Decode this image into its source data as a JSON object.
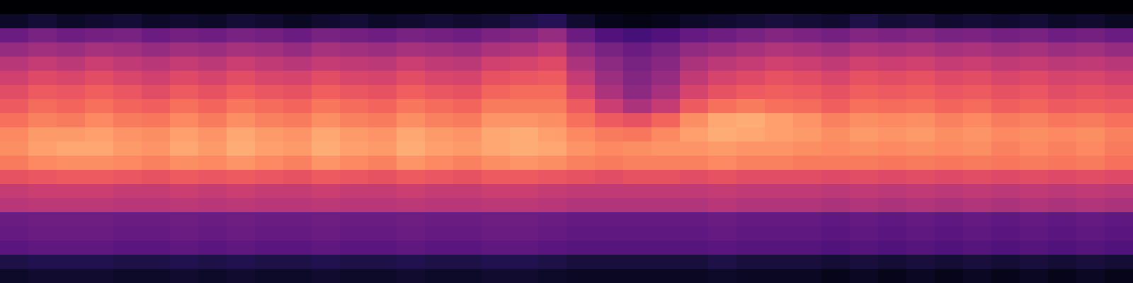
{
  "chart_data": {
    "type": "heatmap",
    "color": "magma",
    "tick_labels": false,
    "zlim": [
      -80,
      0
    ],
    "z": [
      [
        -80,
        -80,
        -80,
        -80,
        -80,
        -80,
        -80,
        -80,
        -80,
        -80,
        -80,
        -80,
        -80,
        -80,
        -80,
        -80,
        -80,
        -80,
        -80,
        -80,
        -80,
        -80,
        -80,
        -80,
        -80,
        -80,
        -80,
        -80,
        -80,
        -80,
        -80,
        -80,
        -80,
        -80,
        -80,
        -80,
        -80,
        -80,
        -80,
        -80
      ],
      [
        -74,
        -72,
        -74,
        -73,
        -72,
        -74,
        -73,
        -74,
        -72,
        -73,
        -75,
        -73,
        -72,
        -74,
        -73,
        -72,
        -73,
        -72,
        -70,
        -68,
        -73,
        -76,
        -77,
        -76,
        -74,
        -73,
        -72,
        -71,
        -72,
        -73,
        -70,
        -72,
        -71,
        -73,
        -72,
        -73,
        -72,
        -74,
        -73,
        -75
      ],
      [
        -55,
        -52,
        -54,
        -53,
        -52,
        -55,
        -53,
        -54,
        -52,
        -53,
        -55,
        -52,
        -53,
        -54,
        -52,
        -53,
        -54,
        -51,
        -50,
        -46,
        -55,
        -60,
        -62,
        -60,
        -56,
        -54,
        -52,
        -50,
        -51,
        -53,
        -50,
        -51,
        -50,
        -52,
        -51,
        -53,
        -52,
        -54,
        -53,
        -55
      ],
      [
        -46,
        -44,
        -45,
        -43,
        -44,
        -46,
        -44,
        -45,
        -43,
        -44,
        -46,
        -43,
        -44,
        -45,
        -43,
        -44,
        -45,
        -42,
        -41,
        -38,
        -47,
        -52,
        -55,
        -52,
        -47,
        -45,
        -43,
        -41,
        -42,
        -44,
        -41,
        -42,
        -41,
        -43,
        -42,
        -44,
        -43,
        -45,
        -44,
        -46
      ],
      [
        -40,
        -37,
        -39,
        -36,
        -38,
        -40,
        -37,
        -39,
        -36,
        -38,
        -40,
        -37,
        -38,
        -39,
        -36,
        -38,
        -39,
        -35,
        -34,
        -32,
        -42,
        -48,
        -52,
        -49,
        -42,
        -39,
        -37,
        -35,
        -36,
        -38,
        -35,
        -36,
        -35,
        -37,
        -36,
        -38,
        -37,
        -39,
        -38,
        -40
      ],
      [
        -35,
        -32,
        -33,
        -31,
        -33,
        -35,
        -32,
        -34,
        -31,
        -33,
        -34,
        -31,
        -33,
        -34,
        -31,
        -33,
        -34,
        -30,
        -29,
        -28,
        -37,
        -45,
        -50,
        -46,
        -38,
        -34,
        -32,
        -30,
        -31,
        -33,
        -30,
        -31,
        -30,
        -32,
        -31,
        -33,
        -32,
        -34,
        -33,
        -35
      ],
      [
        -31,
        -28,
        -29,
        -27,
        -29,
        -31,
        -28,
        -30,
        -27,
        -29,
        -30,
        -27,
        -29,
        -30,
        -27,
        -29,
        -30,
        -26,
        -25,
        -25,
        -33,
        -42,
        -48,
        -43,
        -34,
        -30,
        -28,
        -27,
        -28,
        -30,
        -27,
        -28,
        -27,
        -29,
        -28,
        -30,
        -29,
        -31,
        -30,
        -31
      ],
      [
        -28,
        -25,
        -26,
        -24,
        -26,
        -27,
        -24,
        -26,
        -23,
        -25,
        -26,
        -23,
        -25,
        -26,
        -23,
        -25,
        -26,
        -22,
        -22,
        -22,
        -28,
        -36,
        -42,
        -37,
        -28,
        -24,
        -22,
        -24,
        -25,
        -27,
        -24,
        -25,
        -24,
        -26,
        -25,
        -27,
        -26,
        -28,
        -27,
        -28
      ],
      [
        -24,
        -21,
        -22,
        -20,
        -22,
        -23,
        -20,
        -22,
        -19,
        -21,
        -22,
        -19,
        -21,
        -22,
        -19,
        -21,
        -22,
        -18,
        -18,
        -19,
        -24,
        -28,
        -30,
        -26,
        -19,
        -15,
        -14,
        -16,
        -18,
        -21,
        -19,
        -20,
        -19,
        -21,
        -20,
        -22,
        -21,
        -23,
        -22,
        -24
      ],
      [
        -20,
        -17,
        -17,
        -16,
        -18,
        -19,
        -16,
        -18,
        -15,
        -17,
        -18,
        -15,
        -17,
        -18,
        -15,
        -17,
        -18,
        -15,
        -14,
        -16,
        -20,
        -22,
        -23,
        -20,
        -16,
        -14,
        -15,
        -16,
        -17,
        -19,
        -17,
        -18,
        -17,
        -19,
        -18,
        -20,
        -19,
        -20,
        -19,
        -21
      ],
      [
        -19,
        -16,
        -15,
        -15,
        -17,
        -18,
        -15,
        -17,
        -14,
        -16,
        -17,
        -14,
        -16,
        -17,
        -14,
        -16,
        -17,
        -15,
        -14,
        -15,
        -18,
        -20,
        -19,
        -18,
        -18,
        -17,
        -18,
        -18,
        -19,
        -20,
        -19,
        -20,
        -19,
        -20,
        -19,
        -21,
        -20,
        -21,
        -20,
        -22
      ],
      [
        -22,
        -20,
        -19,
        -19,
        -20,
        -21,
        -19,
        -20,
        -18,
        -20,
        -21,
        -18,
        -20,
        -21,
        -18,
        -20,
        -21,
        -19,
        -18,
        -19,
        -21,
        -22,
        -21,
        -21,
        -21,
        -20,
        -21,
        -21,
        -22,
        -22,
        -22,
        -23,
        -22,
        -23,
        -22,
        -23,
        -22,
        -23,
        -22,
        -24
      ],
      [
        -30,
        -29,
        -28,
        -28,
        -29,
        -30,
        -28,
        -29,
        -28,
        -29,
        -30,
        -28,
        -29,
        -30,
        -28,
        -29,
        -30,
        -28,
        -28,
        -29,
        -30,
        -31,
        -30,
        -30,
        -31,
        -30,
        -31,
        -31,
        -31,
        -32,
        -31,
        -32,
        -31,
        -32,
        -31,
        -32,
        -31,
        -32,
        -31,
        -32
      ],
      [
        -37,
        -36,
        -36,
        -36,
        -37,
        -37,
        -36,
        -37,
        -36,
        -37,
        -37,
        -36,
        -37,
        -37,
        -36,
        -37,
        -37,
        -36,
        -36,
        -37,
        -38,
        -38,
        -38,
        -38,
        -38,
        -37,
        -38,
        -38,
        -38,
        -39,
        -38,
        -39,
        -38,
        -39,
        -38,
        -39,
        -38,
        -39,
        -38,
        -39
      ],
      [
        -40,
        -39,
        -39,
        -39,
        -40,
        -40,
        -39,
        -40,
        -39,
        -40,
        -40,
        -39,
        -40,
        -40,
        -39,
        -40,
        -40,
        -39,
        -39,
        -40,
        -41,
        -41,
        -41,
        -41,
        -41,
        -40,
        -41,
        -41,
        -41,
        -42,
        -41,
        -42,
        -41,
        -42,
        -41,
        -42,
        -41,
        -42,
        -41,
        -42
      ],
      [
        -55,
        -54,
        -54,
        -54,
        -55,
        -55,
        -54,
        -55,
        -54,
        -55,
        -55,
        -54,
        -55,
        -55,
        -54,
        -55,
        -55,
        -54,
        -54,
        -55,
        -56,
        -56,
        -56,
        -56,
        -56,
        -55,
        -56,
        -56,
        -56,
        -57,
        -56,
        -57,
        -56,
        -57,
        -56,
        -57,
        -56,
        -57,
        -56,
        -57
      ],
      [
        -56,
        -55,
        -55,
        -55,
        -56,
        -56,
        -55,
        -56,
        -55,
        -56,
        -56,
        -55,
        -56,
        -56,
        -55,
        -56,
        -56,
        -55,
        -55,
        -56,
        -57,
        -57,
        -57,
        -57,
        -57,
        -56,
        -57,
        -57,
        -57,
        -58,
        -57,
        -58,
        -57,
        -58,
        -57,
        -58,
        -57,
        -58,
        -57,
        -58
      ],
      [
        -58,
        -57,
        -57,
        -57,
        -58,
        -58,
        -57,
        -58,
        -57,
        -58,
        -58,
        -57,
        -58,
        -58,
        -57,
        -58,
        -58,
        -57,
        -57,
        -58,
        -59,
        -59,
        -59,
        -59,
        -59,
        -58,
        -59,
        -59,
        -59,
        -60,
        -59,
        -60,
        -59,
        -60,
        -59,
        -60,
        -59,
        -60,
        -59,
        -60
      ],
      [
        -70,
        -69,
        -69,
        -69,
        -70,
        -70,
        -69,
        -70,
        -69,
        -70,
        -70,
        -69,
        -70,
        -70,
        -69,
        -70,
        -70,
        -69,
        -69,
        -70,
        -71,
        -71,
        -71,
        -71,
        -71,
        -70,
        -71,
        -71,
        -71,
        -72,
        -71,
        -72,
        -71,
        -72,
        -71,
        -72,
        -71,
        -72,
        -71,
        -72
      ],
      [
        -74,
        -73,
        -73,
        -73,
        -74,
        -74,
        -73,
        -74,
        -73,
        -74,
        -74,
        -73,
        -74,
        -74,
        -73,
        -74,
        -74,
        -73,
        -73,
        -74,
        -75,
        -75,
        -75,
        -75,
        -75,
        -74,
        -75,
        -75,
        -75,
        -76,
        -75,
        -76,
        -75,
        -76,
        -75,
        -76,
        -75,
        -76,
        -75,
        -76
      ]
    ]
  }
}
